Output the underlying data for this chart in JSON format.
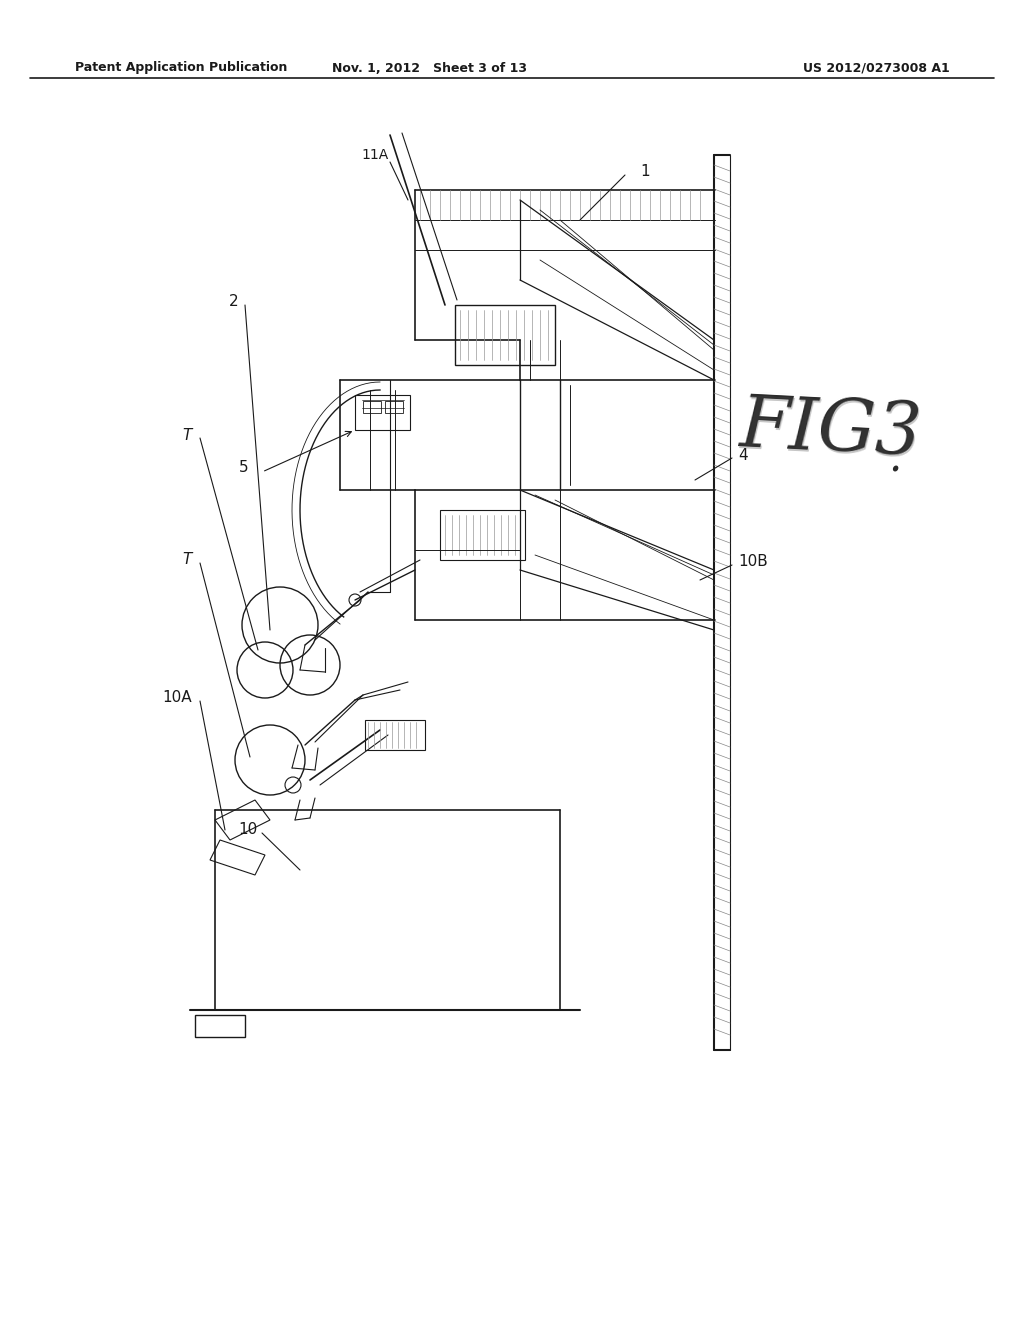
{
  "bg_color": "#ffffff",
  "line_color": "#1a1a1a",
  "header_left": "Patent Application Publication",
  "header_center": "Nov. 1, 2012   Sheet 3 of 13",
  "header_right": "US 2012/0273008 A1",
  "fig_label": "FIG3",
  "page_width": 10.24,
  "page_height": 13.2,
  "dpi": 100
}
